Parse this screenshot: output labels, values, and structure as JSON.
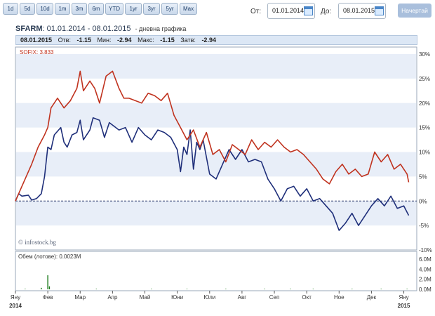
{
  "toolbar": {
    "ranges": [
      "1d",
      "5d",
      "10d",
      "1m",
      "3m",
      "6m",
      "YTD",
      "1yr",
      "3yr",
      "5yr",
      "Max"
    ],
    "from_label": "От:",
    "from_value": "01.01.2014",
    "to_label": "До:",
    "to_value": "08.01.2015",
    "draw_label": "Начертай"
  },
  "header": {
    "symbol": "SFARM",
    "period": ": 01.01.2014 - 08.01.2015",
    "mode": "- дневна графика"
  },
  "stats": {
    "date": "08.01.2015",
    "open_label": "Отв:",
    "open": "-1.15",
    "min_label": "Мин:",
    "min": "-2.94",
    "max_label": "Макс:",
    "max": "-1.15",
    "close_label": "Затв:",
    "close": "-2.94"
  },
  "legend": {
    "sofix_label": "SOFIX: 3.833"
  },
  "watermark": "© infostock.bg",
  "volume": {
    "label": "Обем (лотове): 0.0023M"
  },
  "colors": {
    "sfarm": "#1f2f7a",
    "sofix": "#c0321e",
    "volume": "#1a7a1a",
    "band": "#e8eef8",
    "accent": "#4a86c8"
  },
  "chart_data": [
    {
      "type": "line",
      "title": "SFARM",
      "x_ticks": [
        [
          "Яну",
          "2014"
        ],
        [
          "Фев"
        ],
        [
          "Мар"
        ],
        [
          "Апр"
        ],
        [
          "Май"
        ],
        [
          "Юни"
        ],
        [
          "Юли"
        ],
        [
          "Авг"
        ],
        [
          "Сеп"
        ],
        [
          "Окт"
        ],
        [
          "Ное"
        ],
        [
          "Дек"
        ],
        [
          "Яну",
          "2015"
        ]
      ],
      "y_ticks": [
        "30%",
        "25%",
        "20%",
        "15%",
        "10%",
        "5%",
        "0%",
        "-5%",
        "-10%"
      ],
      "ylim": [
        -10,
        30
      ],
      "grid": "horizontal bands",
      "series": [
        {
          "name": "SFARM",
          "x": [
            0,
            0.1,
            0.2,
            0.4,
            0.5,
            0.65,
            0.8,
            0.9,
            1.0,
            1.1,
            1.2,
            1.4,
            1.5,
            1.6,
            1.75,
            1.9,
            2.0,
            2.1,
            2.3,
            2.4,
            2.6,
            2.75,
            2.9,
            3.0,
            3.2,
            3.4,
            3.6,
            3.8,
            4.0,
            4.2,
            4.4,
            4.6,
            4.8,
            5.0,
            5.1,
            5.2,
            5.3,
            5.4,
            5.5,
            5.6,
            5.7,
            5.8,
            6.0,
            6.2,
            6.4,
            6.6,
            6.8,
            7.0,
            7.2,
            7.4,
            7.6,
            7.8,
            8.0,
            8.2,
            8.4,
            8.6,
            8.8,
            9.0,
            9.2,
            9.4,
            9.6,
            9.8,
            10.0,
            10.2,
            10.4,
            10.6,
            10.8,
            11.0,
            11.2,
            11.4,
            11.6,
            11.8,
            12.0,
            12.15
          ],
          "y": [
            0,
            1.5,
            1.0,
            1.2,
            0.2,
            0.5,
            1.5,
            5,
            11,
            10.5,
            13.5,
            15,
            12,
            11,
            13.5,
            14,
            16.5,
            12.5,
            14.5,
            17,
            16.5,
            13,
            16,
            15.5,
            14.5,
            15,
            12,
            15,
            13.5,
            12.5,
            14.5,
            14,
            13,
            10.5,
            6,
            11,
            9.5,
            14.5,
            6.5,
            12,
            10.5,
            12.5,
            5.5,
            4.5,
            7.5,
            10.5,
            8.5,
            10.5,
            8,
            8.5,
            8,
            4.5,
            2.5,
            0,
            2.5,
            3,
            1,
            2.5,
            0,
            0.5,
            -1,
            -2.5,
            -6,
            -4.5,
            -2.5,
            -5,
            -3,
            -1,
            0.5,
            -1,
            1,
            -1.5,
            -1,
            -2.94
          ]
        },
        {
          "name": "SOFIX",
          "x": [
            0,
            0.1,
            0.3,
            0.5,
            0.7,
            0.9,
            1.0,
            1.1,
            1.3,
            1.5,
            1.7,
            1.9,
            2.0,
            2.1,
            2.3,
            2.45,
            2.6,
            2.8,
            3.0,
            3.2,
            3.35,
            3.5,
            3.7,
            3.9,
            4.1,
            4.3,
            4.5,
            4.7,
            4.9,
            5.1,
            5.3,
            5.5,
            5.7,
            5.9,
            6.1,
            6.3,
            6.5,
            6.7,
            6.9,
            7.1,
            7.3,
            7.5,
            7.7,
            7.9,
            8.1,
            8.3,
            8.5,
            8.7,
            8.9,
            9.1,
            9.3,
            9.5,
            9.7,
            9.9,
            10.1,
            10.3,
            10.5,
            10.7,
            10.9,
            11.1,
            11.3,
            11.5,
            11.7,
            11.9,
            12.1,
            12.15
          ],
          "y": [
            0,
            1.5,
            4.5,
            7.5,
            11,
            13.5,
            15,
            19,
            21,
            19,
            20.5,
            23,
            26.5,
            22.5,
            24.5,
            23,
            20,
            25.5,
            26.5,
            23,
            21,
            21,
            20.5,
            20,
            22,
            21.5,
            20.5,
            22,
            17.5,
            15,
            12.5,
            14.5,
            11,
            14,
            9.5,
            10.5,
            8,
            11.5,
            10.5,
            9.5,
            12.5,
            10.5,
            12,
            11,
            12.5,
            11,
            10,
            10.5,
            9.5,
            8,
            6.5,
            4.5,
            3.5,
            6,
            7.5,
            5.5,
            6.5,
            5,
            5.5,
            10,
            8,
            9.5,
            6.5,
            7.5,
            5.5,
            3.833
          ]
        }
      ]
    },
    {
      "type": "bar",
      "title": "Обем (лотове)",
      "y_ticks": [
        "6.0M",
        "4.0M",
        "2.0M",
        "0.0M"
      ],
      "ylim": [
        0,
        7
      ],
      "ylabel": "Обем (лотове)",
      "x": [
        0.3,
        0.8,
        1.0,
        1.05,
        2.5,
        4.2,
        5.3,
        6.5,
        7.7,
        8.5,
        9.2,
        10.4,
        11.3,
        12.1
      ],
      "values": [
        0.1,
        0.3,
        2.8,
        0.6,
        0.1,
        0.1,
        0.1,
        0.1,
        0.1,
        0.1,
        0.1,
        0.1,
        0.1,
        0.1
      ]
    }
  ]
}
